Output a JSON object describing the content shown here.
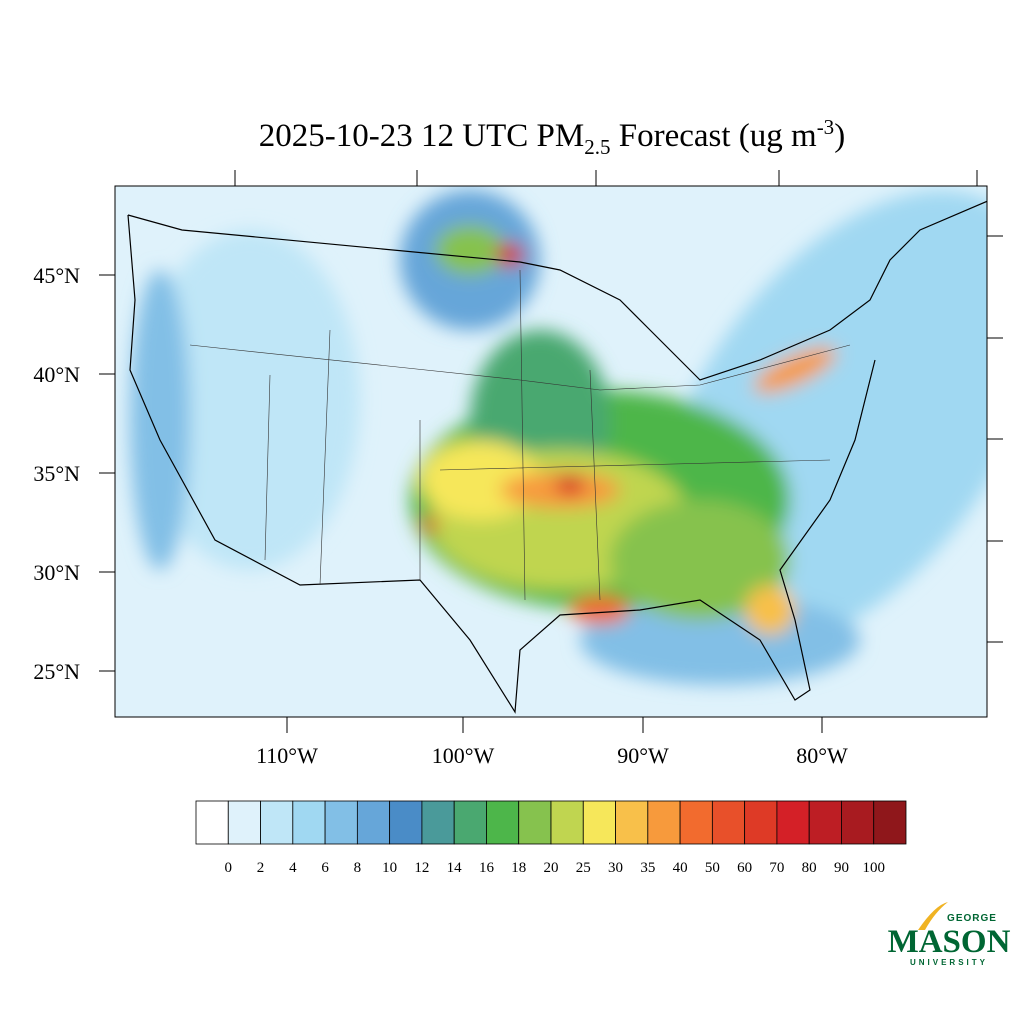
{
  "title": {
    "main": "2025-10-23 12 UTC PM",
    "subscript": "2.5",
    "rest": " Forecast (ug m",
    "superscript": "-3",
    "end": ")"
  },
  "lat_labels": [
    "45°N",
    "40°N",
    "35°N",
    "30°N",
    "25°N"
  ],
  "lon_labels": [
    "110°W",
    "100°W",
    "90°W",
    "80°W"
  ],
  "colorbar": {
    "levels": [
      0,
      2,
      4,
      6,
      8,
      10,
      12,
      14,
      16,
      18,
      20,
      25,
      30,
      35,
      40,
      50,
      60,
      70,
      80,
      90,
      100
    ],
    "colors": [
      "#ffffff",
      "#dff2fb",
      "#bfe6f7",
      "#a0d8f2",
      "#82bfe6",
      "#66a6d9",
      "#4a8cc7",
      "#4a9a9a",
      "#4aa870",
      "#4db64a",
      "#86c24e",
      "#c0d550",
      "#f6e75a",
      "#f8c04a",
      "#f79a3c",
      "#f26b2e",
      "#e8502a",
      "#de3a26",
      "#d42027",
      "#bd1e24",
      "#a81b20",
      "#8f171b"
    ]
  },
  "logo": {
    "top": "GEORGE",
    "name": "MASON",
    "bottom": "UNIVERSITY"
  }
}
